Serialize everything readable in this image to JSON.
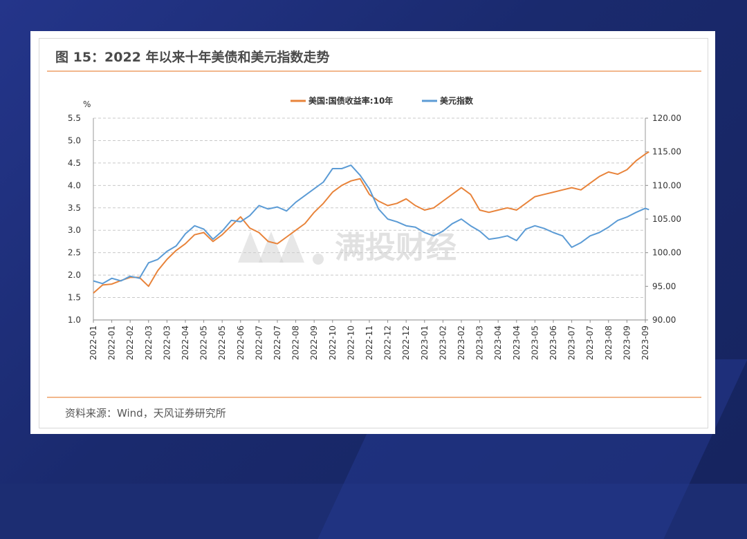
{
  "header": {
    "title": "图 15：2022 年以来十年美债和美元指数走势"
  },
  "footer": {
    "source": "资料来源：Wind，天风证券研究所"
  },
  "watermark": {
    "text": "满投财经"
  },
  "colors": {
    "treasury": "#e8833a",
    "dxy": "#5b9bd5",
    "accent_rule": "#f2b78c",
    "background": "#1c2d72"
  },
  "chart_data": {
    "type": "line",
    "left_axis_unit": "%",
    "ylim_left": [
      1.0,
      5.5
    ],
    "yticks_left": [
      "1.0",
      "1.5",
      "2.0",
      "2.5",
      "3.0",
      "3.5",
      "4.0",
      "4.5",
      "5.0",
      "5.5"
    ],
    "ylim_right": [
      90,
      120
    ],
    "yticks_right": [
      "90.00",
      "95.00",
      "100.00",
      "105.00",
      "110.00",
      "115.00",
      "120.00"
    ],
    "x_tick_labels": [
      "2022-01",
      "2022-01",
      "2022-02",
      "2022-03",
      "2022-03",
      "2022-04",
      "2022-05",
      "2022-05",
      "2022-06",
      "2022-07",
      "2022-07",
      "2022-08",
      "2022-09",
      "2022-10",
      "2022-10",
      "2022-11",
      "2022-12",
      "2022-12",
      "2023-01",
      "2023-02",
      "2023-02",
      "2023-03",
      "2023-04",
      "2023-04",
      "2023-05",
      "2023-06",
      "2023-07",
      "2023-07",
      "2023-08",
      "2023-09",
      "2023-09"
    ],
    "grid": "horizontal-dashed",
    "legend_position": "top-center",
    "series": [
      {
        "name": "美国:国债收益率:10年",
        "axis": "left",
        "color": "#e8833a",
        "points": [
          [
            0,
            1.6
          ],
          [
            0.5,
            1.78
          ],
          [
            1,
            1.8
          ],
          [
            1.5,
            1.88
          ],
          [
            2,
            1.95
          ],
          [
            2.5,
            1.95
          ],
          [
            3,
            1.75
          ],
          [
            3.5,
            2.1
          ],
          [
            4,
            2.35
          ],
          [
            4.5,
            2.55
          ],
          [
            5,
            2.7
          ],
          [
            5.5,
            2.9
          ],
          [
            6,
            2.95
          ],
          [
            6.5,
            2.75
          ],
          [
            7,
            2.9
          ],
          [
            7.5,
            3.1
          ],
          [
            8,
            3.3
          ],
          [
            8.5,
            3.05
          ],
          [
            9,
            2.95
          ],
          [
            9.5,
            2.75
          ],
          [
            10,
            2.7
          ],
          [
            10.5,
            2.85
          ],
          [
            11,
            3.0
          ],
          [
            11.5,
            3.15
          ],
          [
            12,
            3.4
          ],
          [
            12.5,
            3.6
          ],
          [
            13,
            3.85
          ],
          [
            13.5,
            4.0
          ],
          [
            14,
            4.1
          ],
          [
            14.5,
            4.15
          ],
          [
            15,
            3.8
          ],
          [
            15.5,
            3.65
          ],
          [
            16,
            3.55
          ],
          [
            16.5,
            3.6
          ],
          [
            17,
            3.7
          ],
          [
            17.5,
            3.55
          ],
          [
            18,
            3.45
          ],
          [
            18.5,
            3.5
          ],
          [
            19,
            3.65
          ],
          [
            19.5,
            3.8
          ],
          [
            20,
            3.95
          ],
          [
            20.5,
            3.8
          ],
          [
            21,
            3.45
          ],
          [
            21.5,
            3.4
          ],
          [
            22,
            3.45
          ],
          [
            22.5,
            3.5
          ],
          [
            23,
            3.45
          ],
          [
            23.5,
            3.6
          ],
          [
            24,
            3.75
          ],
          [
            24.5,
            3.8
          ],
          [
            25,
            3.85
          ],
          [
            25.5,
            3.9
          ],
          [
            26,
            3.95
          ],
          [
            26.5,
            3.9
          ],
          [
            27,
            4.05
          ],
          [
            27.5,
            4.2
          ],
          [
            28,
            4.3
          ],
          [
            28.5,
            4.25
          ],
          [
            29,
            4.35
          ],
          [
            29.5,
            4.55
          ],
          [
            30,
            4.7
          ],
          [
            30.2,
            4.75
          ]
        ]
      },
      {
        "name": "美元指数",
        "axis": "right",
        "color": "#5b9bd5",
        "points": [
          [
            0,
            95.8
          ],
          [
            0.5,
            95.4
          ],
          [
            1,
            96.2
          ],
          [
            1.5,
            95.8
          ],
          [
            2,
            96.5
          ],
          [
            2.5,
            96.2
          ],
          [
            3,
            98.5
          ],
          [
            3.5,
            99.0
          ],
          [
            4,
            100.2
          ],
          [
            4.5,
            101.0
          ],
          [
            5,
            102.8
          ],
          [
            5.5,
            104.0
          ],
          [
            6,
            103.5
          ],
          [
            6.5,
            102.0
          ],
          [
            7,
            103.2
          ],
          [
            7.5,
            104.8
          ],
          [
            8,
            104.6
          ],
          [
            8.5,
            105.5
          ],
          [
            9,
            107.0
          ],
          [
            9.5,
            106.5
          ],
          [
            10,
            106.8
          ],
          [
            10.5,
            106.2
          ],
          [
            11,
            107.5
          ],
          [
            11.5,
            108.5
          ],
          [
            12,
            109.5
          ],
          [
            12.5,
            110.5
          ],
          [
            13,
            112.5
          ],
          [
            13.5,
            112.5
          ],
          [
            14,
            113.0
          ],
          [
            14.5,
            111.5
          ],
          [
            15,
            109.5
          ],
          [
            15.5,
            106.5
          ],
          [
            16,
            105.0
          ],
          [
            16.5,
            104.6
          ],
          [
            17,
            104.0
          ],
          [
            17.5,
            103.8
          ],
          [
            18,
            103.0
          ],
          [
            18.5,
            102.5
          ],
          [
            19,
            103.2
          ],
          [
            19.5,
            104.3
          ],
          [
            20,
            105.0
          ],
          [
            20.5,
            104.0
          ],
          [
            21,
            103.2
          ],
          [
            21.5,
            102.0
          ],
          [
            22,
            102.2
          ],
          [
            22.5,
            102.5
          ],
          [
            23,
            101.8
          ],
          [
            23.5,
            103.5
          ],
          [
            24,
            104.0
          ],
          [
            24.5,
            103.6
          ],
          [
            25,
            103.0
          ],
          [
            25.5,
            102.5
          ],
          [
            26,
            100.8
          ],
          [
            26.5,
            101.5
          ],
          [
            27,
            102.5
          ],
          [
            27.5,
            103.0
          ],
          [
            28,
            103.8
          ],
          [
            28.5,
            104.8
          ],
          [
            29,
            105.3
          ],
          [
            29.5,
            106.0
          ],
          [
            30,
            106.6
          ],
          [
            30.2,
            106.4
          ]
        ]
      }
    ]
  }
}
